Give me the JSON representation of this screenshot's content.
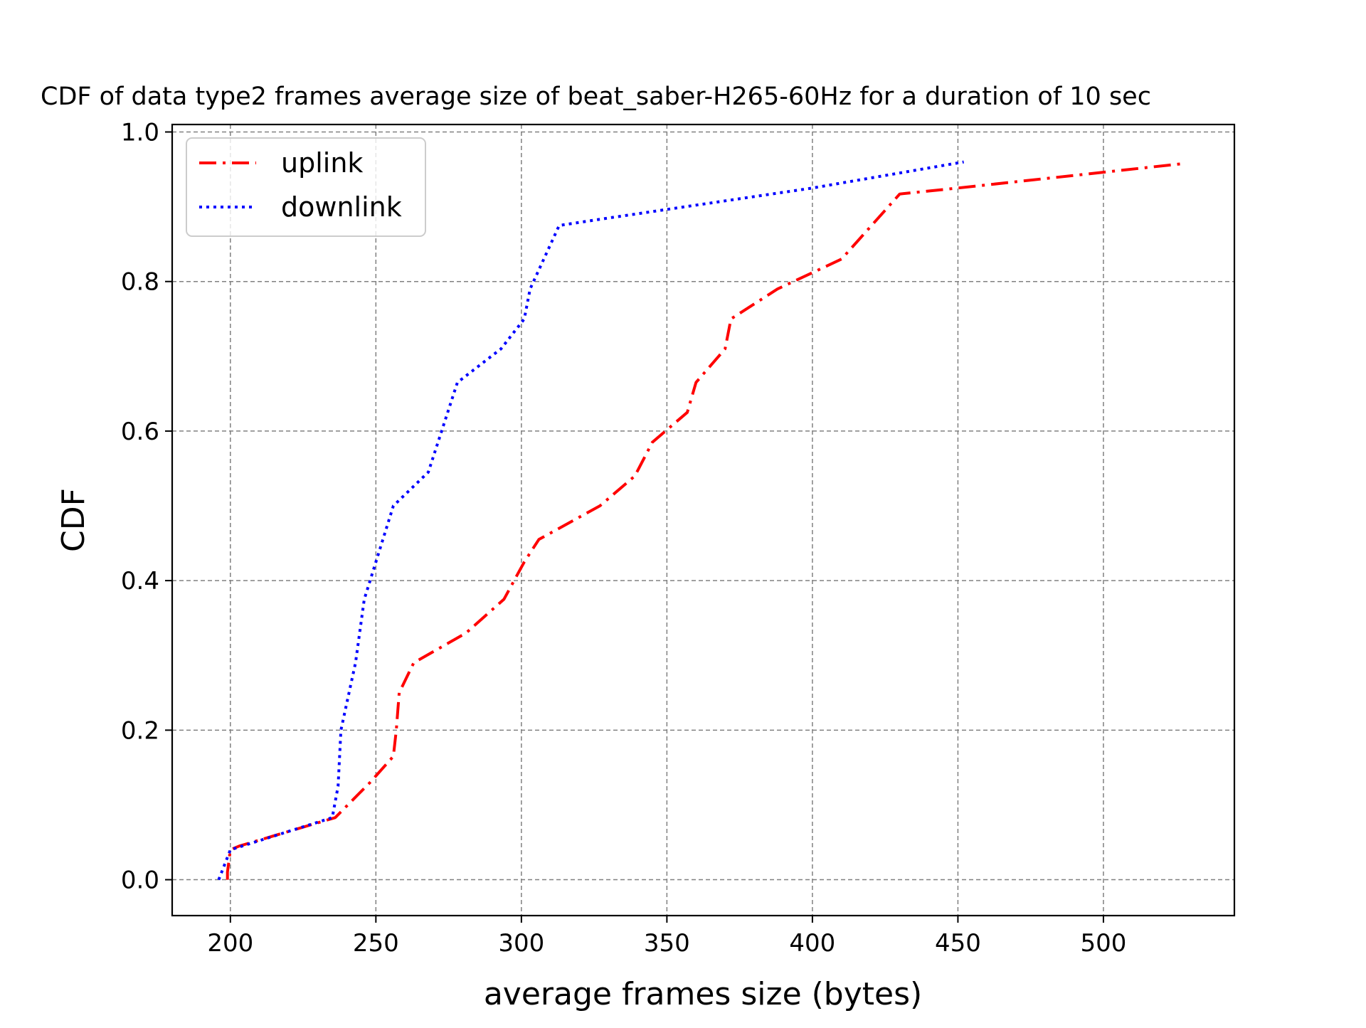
{
  "chart_data": {
    "type": "line",
    "title": "CDF of data type2 frames average size of beat_saber-H265-60Hz for a duration of 10 sec",
    "xlabel": "average frames size (bytes)",
    "ylabel": "CDF",
    "xlim": [
      180,
      545
    ],
    "ylim": [
      -0.048,
      1.01
    ],
    "xticks": [
      "200",
      "250",
      "300",
      "350",
      "400",
      "450",
      "500"
    ],
    "yticks": [
      "0.0",
      "0.2",
      "0.4",
      "0.6",
      "0.8",
      "1.0"
    ],
    "grid": true,
    "legend_position": "upper-left",
    "series": [
      {
        "name": "uplink",
        "color": "#ff0000",
        "style": "dashdot",
        "x": [
          199,
          199,
          200,
          203,
          236,
          248,
          256,
          257,
          258,
          263,
          281,
          294,
          301,
          306,
          327,
          339,
          345,
          357,
          360,
          370,
          372,
          388,
          410,
          430,
          450,
          528
        ],
        "y": [
          0.0,
          0.01,
          0.04,
          0.045,
          0.083,
          0.13,
          0.165,
          0.2,
          0.25,
          0.29,
          0.33,
          0.375,
          0.425,
          0.455,
          0.5,
          0.54,
          0.585,
          0.625,
          0.665,
          0.71,
          0.75,
          0.79,
          0.83,
          0.917,
          0.925,
          0.958
        ]
      },
      {
        "name": "downlink",
        "color": "#0000ff",
        "style": "dotted",
        "x": [
          196,
          200,
          235,
          237,
          238,
          243,
          246,
          256,
          260,
          268,
          278,
          293,
          301,
          303,
          313,
          330,
          400,
          452
        ],
        "y": [
          0.0,
          0.04,
          0.083,
          0.125,
          0.2,
          0.29,
          0.375,
          0.5,
          0.515,
          0.545,
          0.665,
          0.71,
          0.75,
          0.79,
          0.875,
          0.885,
          0.925,
          0.96
        ]
      }
    ]
  }
}
